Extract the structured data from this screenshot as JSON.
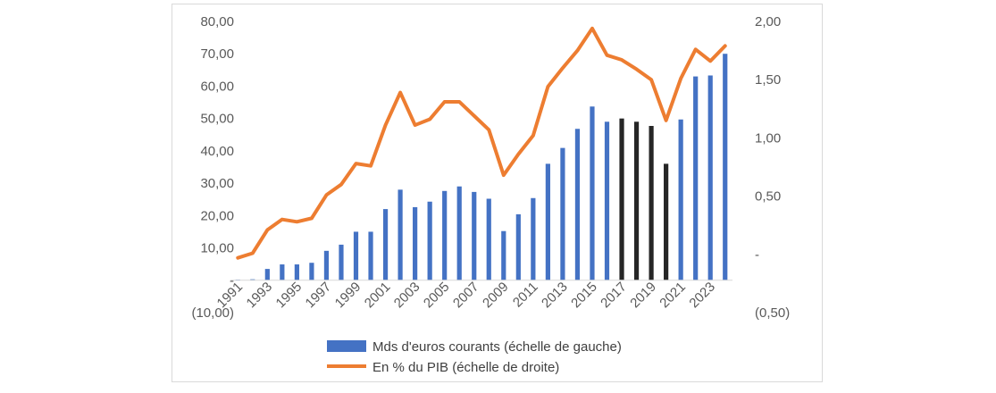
{
  "chart_data": {
    "type": "bar",
    "title": "",
    "x": [
      "1991",
      "1992",
      "1993",
      "1994",
      "1995",
      "1996",
      "1997",
      "1998",
      "1999",
      "2000",
      "2001",
      "2002",
      "2003",
      "2004",
      "2005",
      "2006",
      "2007",
      "2008",
      "2009",
      "2010",
      "2011",
      "2012",
      "2013",
      "2014",
      "2015",
      "2016",
      "2017",
      "2018",
      "2019",
      "2020",
      "2021",
      "2022",
      "2023",
      "2024"
    ],
    "x_tick_labels": [
      "1991",
      "1993",
      "1995",
      "1997",
      "1999",
      "2001",
      "2003",
      "2005",
      "2007",
      "2009",
      "2011",
      "2013",
      "2015",
      "2017",
      "2019",
      "2021",
      "2023"
    ],
    "series": [
      {
        "name": "Mds d'euros courants (échelle de gauche)",
        "type": "bar",
        "axis": "left",
        "color": "#4472C4",
        "highlight_color": "#262626",
        "highlight_x": [
          "2017",
          "2018",
          "2019",
          "2020"
        ],
        "values": [
          0.2,
          0.3,
          3.5,
          4.9,
          4.9,
          5.4,
          9.1,
          11.0,
          15.0,
          15.0,
          22.0,
          28.0,
          22.6,
          24.3,
          27.6,
          29.0,
          27.3,
          25.2,
          15.2,
          20.4,
          25.4,
          36.0,
          40.9,
          46.8,
          53.7,
          49.0,
          50.0,
          49.0,
          47.7,
          36.0,
          49.7,
          63.0,
          63.3,
          70.0
        ]
      },
      {
        "name": "En % du PIB (échelle de droite)",
        "type": "line",
        "axis": "right",
        "color": "#ED7D31",
        "values": [
          -0.03,
          0.01,
          0.21,
          0.3,
          0.28,
          0.31,
          0.51,
          0.6,
          0.78,
          0.76,
          1.11,
          1.39,
          1.11,
          1.16,
          1.31,
          1.31,
          1.19,
          1.07,
          0.68,
          0.86,
          1.02,
          1.44,
          1.6,
          1.75,
          1.94,
          1.71,
          1.67,
          1.59,
          1.5,
          1.15,
          1.51,
          1.76,
          1.66,
          1.79
        ]
      }
    ],
    "y_left": {
      "ylim": [
        -10,
        80
      ],
      "ticks": [
        "80,00",
        "70,00",
        "60,00",
        "50,00",
        "40,00",
        "30,00",
        "20,00",
        "10,00",
        "-",
        "(10,00)"
      ]
    },
    "y_right": {
      "ylim": [
        -0.5,
        2.0
      ],
      "ticks": [
        "2,00",
        "1,50",
        "1,00",
        "0,50",
        "-",
        "(0,50)"
      ]
    },
    "grid": false,
    "legend_position": "bottom"
  }
}
